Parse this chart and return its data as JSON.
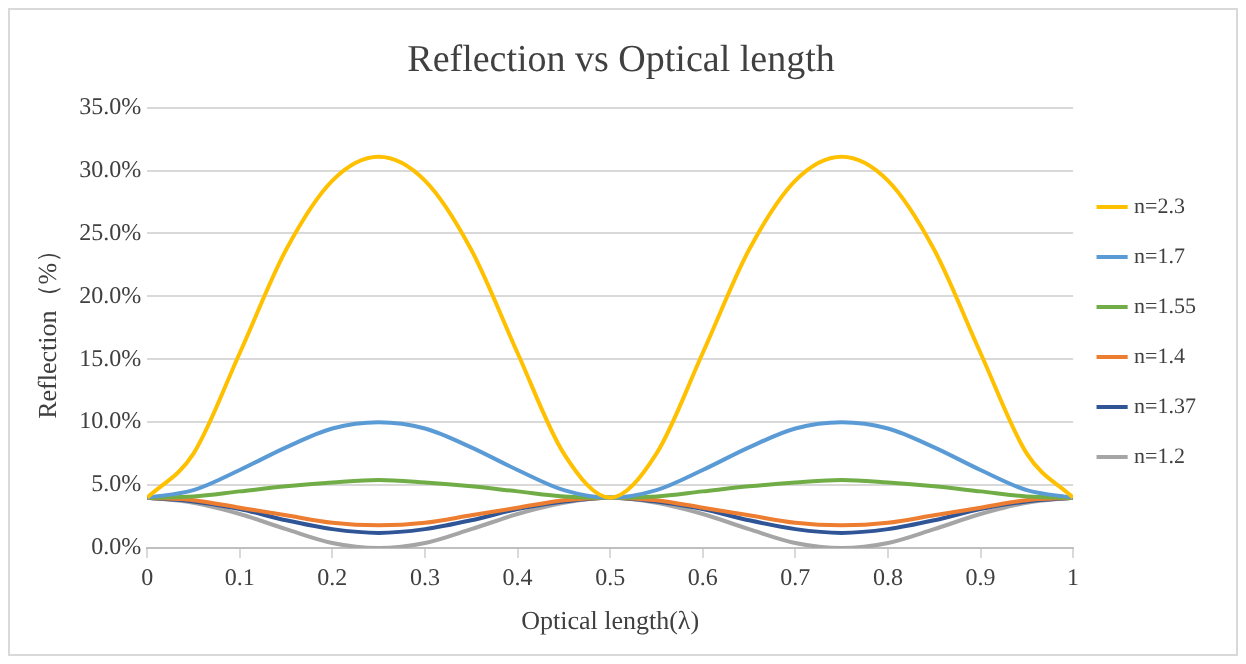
{
  "chart_data": {
    "type": "line",
    "title": "Reflection vs Optical length",
    "xlabel": "Optical length(λ)",
    "ylabel": "Reflection（%）",
    "x": [
      0,
      0.05,
      0.1,
      0.15,
      0.2,
      0.25,
      0.3,
      0.35,
      0.4,
      0.45,
      0.5,
      0.55,
      0.6,
      0.65,
      0.7,
      0.75,
      0.8,
      0.85,
      0.9,
      0.95,
      1
    ],
    "series": [
      {
        "name": "n=2.3",
        "color": "#ffc000",
        "values": [
          4.0,
          7.5,
          15.5,
          23.7,
          29.2,
          31.1,
          29.2,
          23.7,
          15.5,
          7.5,
          4.0,
          7.5,
          15.5,
          23.7,
          29.2,
          31.1,
          29.2,
          23.7,
          15.5,
          7.5,
          4.0
        ]
      },
      {
        "name": "n=1.7",
        "color": "#5b9bd5",
        "values": [
          4.0,
          4.6,
          6.2,
          8.0,
          9.5,
          10.0,
          9.5,
          8.0,
          6.2,
          4.6,
          4.0,
          4.6,
          6.2,
          8.0,
          9.5,
          10.0,
          9.5,
          8.0,
          6.2,
          4.6,
          4.0
        ]
      },
      {
        "name": "n=1.55",
        "color": "#70ad47",
        "values": [
          4.0,
          4.1,
          4.5,
          4.9,
          5.2,
          5.4,
          5.2,
          4.9,
          4.5,
          4.1,
          4.0,
          4.1,
          4.5,
          4.9,
          5.2,
          5.4,
          5.2,
          4.9,
          4.5,
          4.1,
          4.0
        ]
      },
      {
        "name": "n=1.4",
        "color": "#ed7d31",
        "values": [
          4.0,
          3.8,
          3.2,
          2.6,
          2.0,
          1.8,
          2.0,
          2.6,
          3.2,
          3.8,
          4.0,
          3.8,
          3.2,
          2.6,
          2.0,
          1.8,
          2.0,
          2.6,
          3.2,
          3.8,
          4.0
        ]
      },
      {
        "name": "n=1.37",
        "color": "#2f5597",
        "values": [
          4.0,
          3.7,
          3.1,
          2.2,
          1.5,
          1.2,
          1.5,
          2.2,
          3.1,
          3.7,
          4.0,
          3.7,
          3.1,
          2.2,
          1.5,
          1.2,
          1.5,
          2.2,
          3.1,
          3.7,
          4.0
        ]
      },
      {
        "name": "n=1.2",
        "color": "#a5a5a5",
        "values": [
          4.0,
          3.6,
          2.7,
          1.5,
          0.4,
          0.0,
          0.4,
          1.5,
          2.7,
          3.6,
          4.0,
          3.6,
          2.7,
          1.5,
          0.4,
          0.0,
          0.4,
          1.5,
          2.7,
          3.6,
          4.0
        ]
      }
    ],
    "xlim": [
      0,
      1
    ],
    "xticks": [
      0,
      0.1,
      0.2,
      0.3,
      0.4,
      0.5,
      0.6,
      0.7,
      0.8,
      0.9,
      1
    ],
    "ylim": [
      0,
      35
    ],
    "yticks": [
      {
        "value": 0,
        "label": "0.0%"
      },
      {
        "value": 5,
        "label": "5.0%"
      },
      {
        "value": 10,
        "label": "10.0%"
      },
      {
        "value": 15,
        "label": "15.0%"
      },
      {
        "value": 20,
        "label": "20.0%"
      },
      {
        "value": 25,
        "label": "25.0%"
      },
      {
        "value": 30,
        "label": "30.0%"
      },
      {
        "value": 35,
        "label": "35.0%"
      }
    ],
    "grid": "y",
    "legend": "right",
    "marker": "none",
    "line_style": "solid"
  }
}
